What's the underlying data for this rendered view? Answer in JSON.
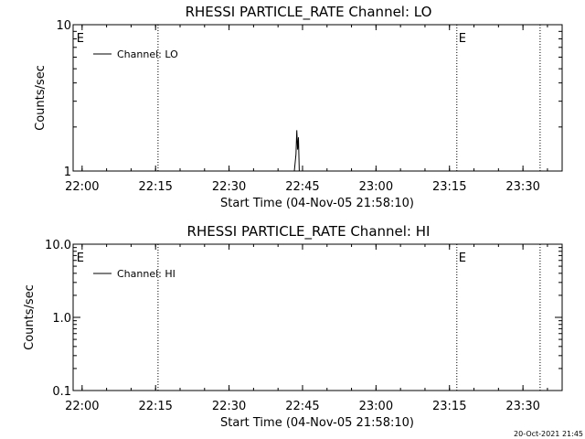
{
  "chart_data": [
    {
      "type": "line",
      "title": "RHESSI PARTICLE_RATE Channel: LO",
      "xlabel": "Start Time (04-Nov-05 21:58:10)",
      "ylabel": "Counts/sec",
      "y_scale": "log",
      "ylim": [
        1,
        10
      ],
      "y_ticks": [
        1,
        10
      ],
      "y_tick_labels": [
        "1",
        "10"
      ],
      "xlim": [
        "21:58:10",
        "23:38:00"
      ],
      "x_ticks": [
        "22:00",
        "22:15",
        "22:30",
        "22:45",
        "23:00",
        "23:15",
        "23:30"
      ],
      "legend": {
        "position": "top-left",
        "entries": [
          "Channel: LO"
        ]
      },
      "markers": [
        {
          "time": "22:15:30",
          "label": ""
        },
        {
          "time": "23:16:30",
          "label": "E"
        },
        {
          "time": "23:33:30",
          "label": ""
        },
        {
          "time": "21:58:30",
          "label": "E"
        }
      ],
      "series": [
        {
          "name": "Channel: LO",
          "x": [
            "22:43:20",
            "22:43:40",
            "22:43:50",
            "22:44:00",
            "22:44:10",
            "22:44:20"
          ],
          "y": [
            1.0,
            1.3,
            1.9,
            1.4,
            1.7,
            1.0
          ]
        }
      ]
    },
    {
      "type": "line",
      "title": "RHESSI PARTICLE_RATE Channel: HI",
      "xlabel": "Start Time (04-Nov-05 21:58:10)",
      "ylabel": "Counts/sec",
      "y_scale": "log",
      "ylim": [
        0.1,
        10
      ],
      "y_ticks": [
        0.1,
        1,
        10
      ],
      "y_tick_labels": [
        "0.1",
        "1.0",
        "10.0"
      ],
      "xlim": [
        "21:58:10",
        "23:38:00"
      ],
      "x_ticks": [
        "22:00",
        "22:15",
        "22:30",
        "22:45",
        "23:00",
        "23:15",
        "23:30"
      ],
      "legend": {
        "position": "top-left",
        "entries": [
          "Channel: HI"
        ]
      },
      "markers": [
        {
          "time": "22:15:30",
          "label": ""
        },
        {
          "time": "23:16:30",
          "label": "E"
        },
        {
          "time": "23:33:30",
          "label": ""
        },
        {
          "time": "21:58:30",
          "label": "E"
        }
      ],
      "series": [
        {
          "name": "Channel: HI",
          "x": [],
          "y": []
        }
      ]
    }
  ],
  "footer": {
    "timestamp": "20-Oct-2021 21:45"
  }
}
